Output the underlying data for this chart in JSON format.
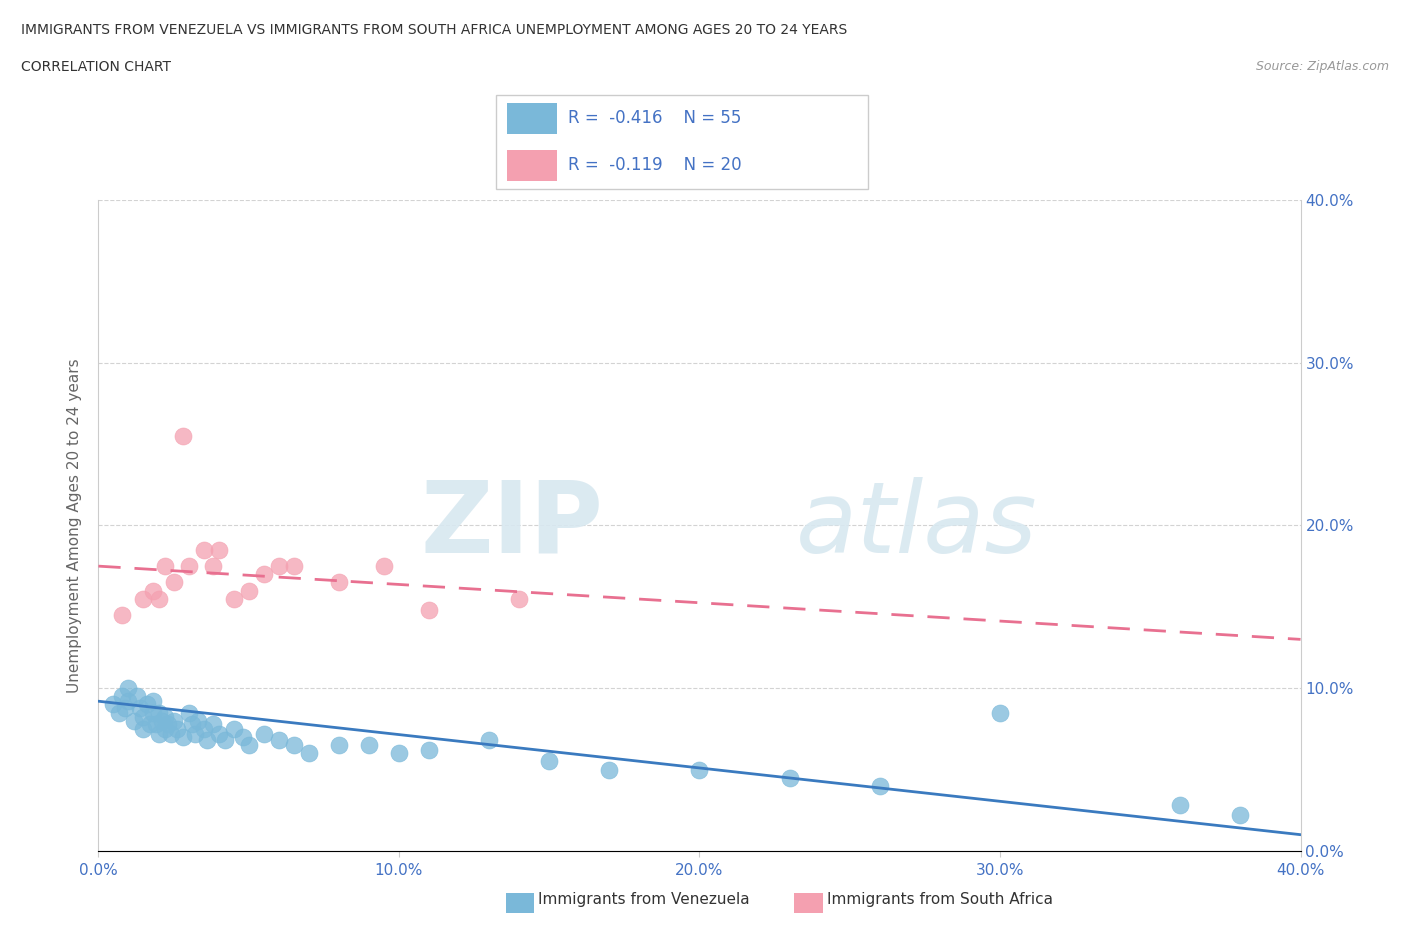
{
  "title_line1": "IMMIGRANTS FROM VENEZUELA VS IMMIGRANTS FROM SOUTH AFRICA UNEMPLOYMENT AMONG AGES 20 TO 24 YEARS",
  "title_line2": "CORRELATION CHART",
  "source": "Source: ZipAtlas.com",
  "ylabel": "Unemployment Among Ages 20 to 24 years",
  "watermark_zip": "ZIP",
  "watermark_atlas": "atlas",
  "legend_label1": "Immigrants from Venezuela",
  "legend_label2": "Immigrants from South Africa",
  "r1": -0.416,
  "n1": 55,
  "r2": -0.119,
  "n2": 20,
  "color_venezuela": "#7ab8d9",
  "color_south_africa": "#f4a0b0",
  "xlim": [
    0.0,
    0.4
  ],
  "ylim": [
    0.0,
    0.4
  ],
  "tick_vals": [
    0.0,
    0.1,
    0.2,
    0.3,
    0.4
  ],
  "tick_labels": [
    "0.0%",
    "10.0%",
    "20.0%",
    "30.0%",
    "40.0%"
  ],
  "venezuela_x": [
    0.005,
    0.007,
    0.008,
    0.009,
    0.01,
    0.01,
    0.012,
    0.013,
    0.014,
    0.015,
    0.015,
    0.016,
    0.017,
    0.018,
    0.018,
    0.019,
    0.02,
    0.02,
    0.021,
    0.022,
    0.022,
    0.023,
    0.024,
    0.025,
    0.026,
    0.028,
    0.03,
    0.031,
    0.032,
    0.033,
    0.035,
    0.036,
    0.038,
    0.04,
    0.042,
    0.045,
    0.048,
    0.05,
    0.055,
    0.06,
    0.065,
    0.07,
    0.08,
    0.09,
    0.1,
    0.11,
    0.13,
    0.15,
    0.17,
    0.2,
    0.23,
    0.26,
    0.3,
    0.36,
    0.38
  ],
  "venezuela_y": [
    0.09,
    0.085,
    0.095,
    0.088,
    0.092,
    0.1,
    0.08,
    0.095,
    0.088,
    0.075,
    0.082,
    0.09,
    0.078,
    0.085,
    0.092,
    0.078,
    0.072,
    0.085,
    0.08,
    0.075,
    0.082,
    0.078,
    0.072,
    0.08,
    0.075,
    0.07,
    0.085,
    0.078,
    0.072,
    0.08,
    0.075,
    0.068,
    0.078,
    0.072,
    0.068,
    0.075,
    0.07,
    0.065,
    0.072,
    0.068,
    0.065,
    0.06,
    0.065,
    0.065,
    0.06,
    0.062,
    0.068,
    0.055,
    0.05,
    0.05,
    0.045,
    0.04,
    0.085,
    0.028,
    0.022
  ],
  "south_africa_x": [
    0.008,
    0.015,
    0.018,
    0.02,
    0.022,
    0.025,
    0.028,
    0.03,
    0.035,
    0.038,
    0.04,
    0.045,
    0.05,
    0.055,
    0.06,
    0.065,
    0.08,
    0.095,
    0.11,
    0.14
  ],
  "south_africa_y": [
    0.145,
    0.155,
    0.16,
    0.155,
    0.175,
    0.165,
    0.255,
    0.175,
    0.185,
    0.175,
    0.185,
    0.155,
    0.16,
    0.17,
    0.175,
    0.175,
    0.165,
    0.175,
    0.148,
    0.155
  ]
}
